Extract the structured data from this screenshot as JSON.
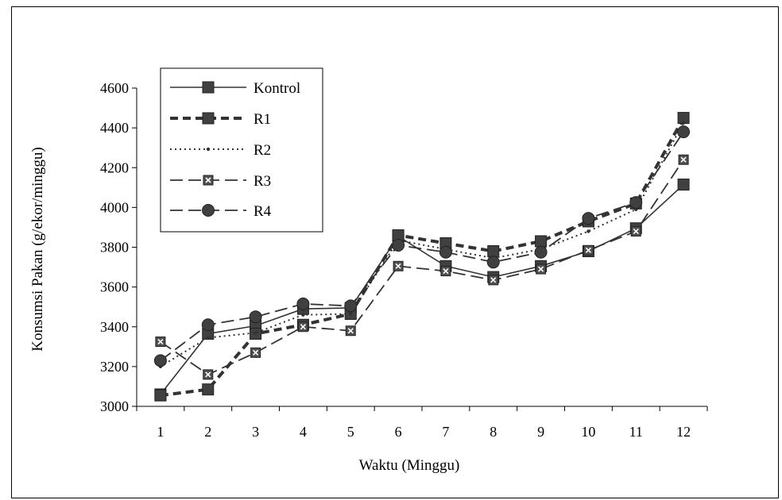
{
  "chart_data": {
    "type": "line",
    "xlabel": "Waktu (Minggu)",
    "ylabel": "Konsumsi Pakan (g/ekor/minggu)",
    "ylim": [
      3000,
      4600
    ],
    "yticks": [
      3000,
      3200,
      3400,
      3600,
      3800,
      4000,
      4200,
      4400,
      4600
    ],
    "categories": [
      "1",
      "2",
      "3",
      "4",
      "5",
      "6",
      "7",
      "8",
      "9",
      "10",
      "11",
      "12"
    ],
    "grid": false,
    "legend_position": "top-left",
    "series": [
      {
        "name": "Kontrol",
        "style": "solid",
        "marker": "square",
        "values": [
          3060,
          3365,
          3405,
          3490,
          3495,
          3855,
          3705,
          3650,
          3705,
          3780,
          3895,
          4115
        ]
      },
      {
        "name": "R1",
        "style": "thick-dash",
        "marker": "square",
        "values": [
          3055,
          3085,
          3365,
          3410,
          3465,
          3860,
          3820,
          3780,
          3830,
          3930,
          4020,
          4450
        ]
      },
      {
        "name": "R2",
        "style": "dotted",
        "marker": "dot",
        "values": [
          3200,
          3345,
          3370,
          3460,
          3465,
          3835,
          3790,
          3745,
          3790,
          3880,
          3990,
          4425
        ]
      },
      {
        "name": "R3",
        "style": "long-dash",
        "marker": "square-x",
        "values": [
          3325,
          3160,
          3270,
          3400,
          3380,
          3705,
          3680,
          3635,
          3690,
          3785,
          3880,
          4240
        ]
      },
      {
        "name": "R4",
        "style": "long-dash",
        "marker": "circle",
        "values": [
          3230,
          3410,
          3450,
          3515,
          3505,
          3810,
          3775,
          3725,
          3775,
          3945,
          4025,
          4380
        ]
      }
    ]
  }
}
